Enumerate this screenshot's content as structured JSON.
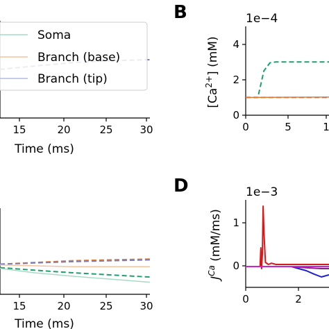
{
  "panels": {
    "A": {
      "xlabel": "Time (ms)",
      "xticks": [
        "15",
        "20",
        "25",
        "30"
      ]
    },
    "B": {
      "label": "B",
      "offset": "1e−4",
      "ylabel_base": "[Ca",
      "ylabel_sup": "2+",
      "ylabel_tail": "] (mM)",
      "yticks": [
        "0",
        "2",
        "4"
      ],
      "xticks": [
        "0",
        "5",
        "1"
      ]
    },
    "C": {
      "xlabel": "Time (ms)",
      "xticks": [
        "15",
        "20",
        "25",
        "30"
      ]
    },
    "D": {
      "label": "D",
      "offset": "1e−3",
      "ylabel_j": "J",
      "ylabel_sup": "Ca",
      "ylabel_tail": " (mM/ms)",
      "yticks": [
        "0",
        "1"
      ],
      "xticks": [
        "0",
        "2"
      ]
    }
  },
  "legend": {
    "entries": [
      {
        "label": "Soma",
        "color": "#a6dcc5"
      },
      {
        "label": "Branch (base)",
        "color": "#f5c29e"
      },
      {
        "label": "Branch (tip)",
        "color": "#b6bce6"
      }
    ]
  },
  "colors": {
    "soma": "#a6dcc5",
    "soma_dark": "#1e9f6e",
    "base": "#f5c29e",
    "base_dark": "#e27a30",
    "tip": "#b6bce6",
    "tip_dark": "#7c7cb4",
    "red": "#d7191c",
    "blue": "#1f1fd0",
    "magenta": "#d020d0",
    "purple": "#7b2a7b"
  },
  "chart_data": [
    {
      "panel": "A",
      "type": "line",
      "xlabel": "Time (ms)",
      "xlim": [
        10.5,
        30
      ],
      "ylim": [
        -1,
        1
      ],
      "series": [
        {
          "style": "dashed",
          "x": [
            10.5,
            15,
            20,
            25,
            30
          ],
          "y": [
            0.0,
            0.07,
            0.14,
            0.18,
            0.2
          ]
        }
      ]
    },
    {
      "panel": "B",
      "type": "line",
      "ylabel": "[Ca2+] (mM)",
      "offset": "1e-4",
      "xlim": [
        0,
        11
      ],
      "ylim": [
        0,
        5
      ],
      "series": [
        {
          "style": "dashed",
          "x": [
            0,
            1.6,
            2.4,
            3.2,
            4,
            11
          ],
          "y": [
            1,
            1,
            2.5,
            2.95,
            3,
            3
          ]
        },
        {
          "style": "dashed",
          "x": [
            0,
            11
          ],
          "y": [
            1,
            1
          ]
        },
        {
          "style": "solid",
          "x": [
            0,
            11
          ],
          "y": [
            1,
            1.02
          ]
        }
      ]
    },
    {
      "panel": "C",
      "type": "line",
      "xlabel": "Time (ms)",
      "xlim": [
        10.5,
        30
      ],
      "ylim": [
        -1,
        1
      ],
      "series": [
        {
          "style": "dashed",
          "x": [
            10.5,
            20,
            30
          ],
          "y": [
            -0.3,
            -0.22,
            -0.18
          ]
        },
        {
          "style": "dashed",
          "x": [
            10.5,
            20,
            30
          ],
          "y": [
            -0.3,
            -0.24,
            -0.2
          ]
        },
        {
          "style": "solid",
          "x": [
            10.5,
            20,
            30
          ],
          "y": [
            -0.32,
            -0.36,
            -0.36
          ]
        },
        {
          "style": "dashed",
          "x": [
            10.5,
            15,
            20,
            25,
            30
          ],
          "y": [
            -0.38,
            -0.44,
            -0.5,
            -0.55,
            -0.6
          ]
        },
        {
          "style": "solid",
          "x": [
            10.5,
            15,
            20,
            25,
            30
          ],
          "y": [
            -0.4,
            -0.5,
            -0.58,
            -0.65,
            -0.72
          ]
        }
      ]
    },
    {
      "panel": "D",
      "type": "line",
      "ylabel": "JCa (mM/ms)",
      "offset": "1e-3",
      "xlim": [
        0,
        5.5
      ],
      "ylim": [
        -0.5,
        1.6
      ],
      "series": [
        {
          "x": [
            0,
            0.95,
            1.0,
            1.05,
            1.1,
            1.15,
            1.2,
            1.3,
            1.5,
            1.7,
            2.0,
            3.0,
            5.5
          ],
          "y": [
            0,
            0,
            0.45,
            -0.05,
            0.3,
            1.45,
            0.85,
            0.1,
            0.05,
            0.08,
            0.05,
            0.05,
            0.05
          ]
        },
        {
          "x": [
            0,
            3.0,
            3.5,
            4.0,
            4.5,
            5.0,
            5.5
          ],
          "y": [
            0,
            0,
            -0.05,
            -0.1,
            -0.18,
            -0.25,
            -0.2
          ]
        },
        {
          "x": [
            0,
            3.0,
            4.0,
            5.0,
            5.5
          ],
          "y": [
            0,
            0,
            -0.03,
            -0.05,
            -0.05
          ]
        },
        {
          "x": [
            0,
            5.5
          ],
          "y": [
            0,
            0
          ]
        }
      ]
    }
  ]
}
